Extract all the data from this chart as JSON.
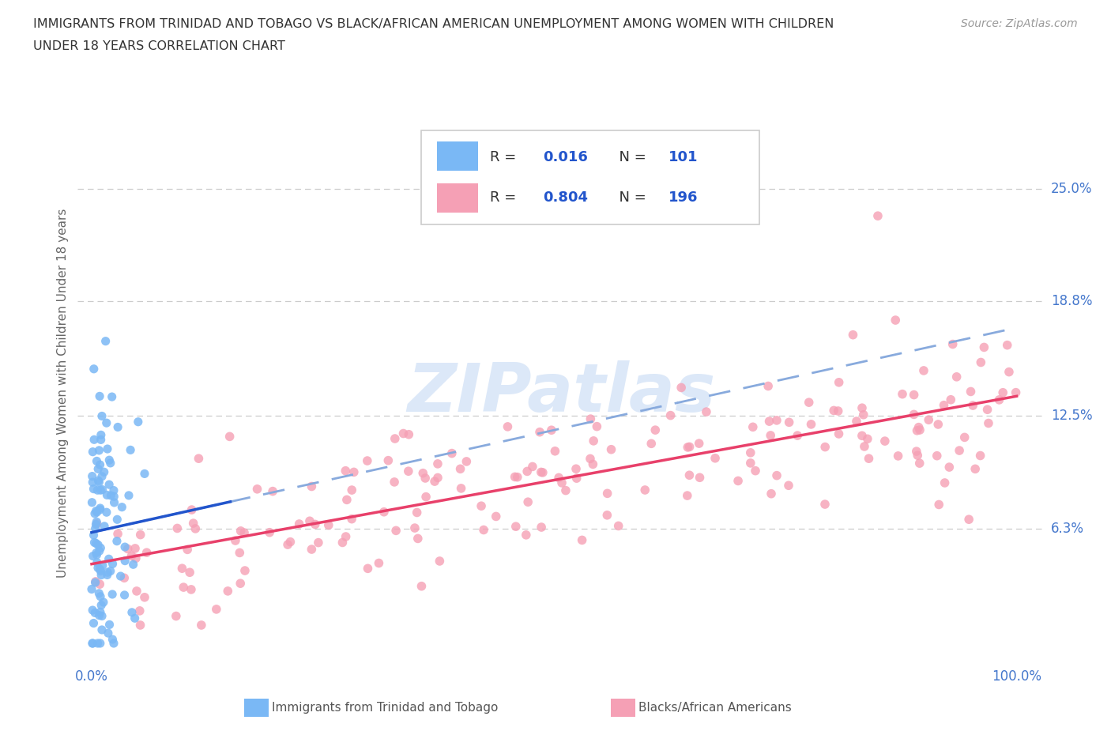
{
  "title_line1": "IMMIGRANTS FROM TRINIDAD AND TOBAGO VS BLACK/AFRICAN AMERICAN UNEMPLOYMENT AMONG WOMEN WITH CHILDREN",
  "title_line2": "UNDER 18 YEARS CORRELATION CHART",
  "source": "Source: ZipAtlas.com",
  "ylabel": "Unemployment Among Women with Children Under 18 years",
  "watermark": "ZIPatlas",
  "legend_blue_label": "Immigrants from Trinidad and Tobago",
  "legend_pink_label": "Blacks/African Americans",
  "y_tick_labels_right": [
    "6.3%",
    "12.5%",
    "18.8%",
    "25.0%"
  ],
  "y_tick_values_right": [
    0.063,
    0.125,
    0.188,
    0.25
  ],
  "ylim": [
    -0.01,
    0.285
  ],
  "xlim": [
    -1.5,
    103.0
  ],
  "blue_scatter_color": "#7ab8f5",
  "pink_scatter_color": "#f5a0b5",
  "blue_solid_color": "#2255cc",
  "pink_line_color": "#e8406a",
  "blue_dashed_color": "#88aadd",
  "grid_color": "#cccccc",
  "title_color": "#333333",
  "axis_label_color": "#666666",
  "right_tick_color": "#4477cc",
  "watermark_color": "#dce8f8",
  "legend_R_color": "#2255cc",
  "background_color": "#ffffff",
  "blue_N": 101,
  "pink_N": 196
}
